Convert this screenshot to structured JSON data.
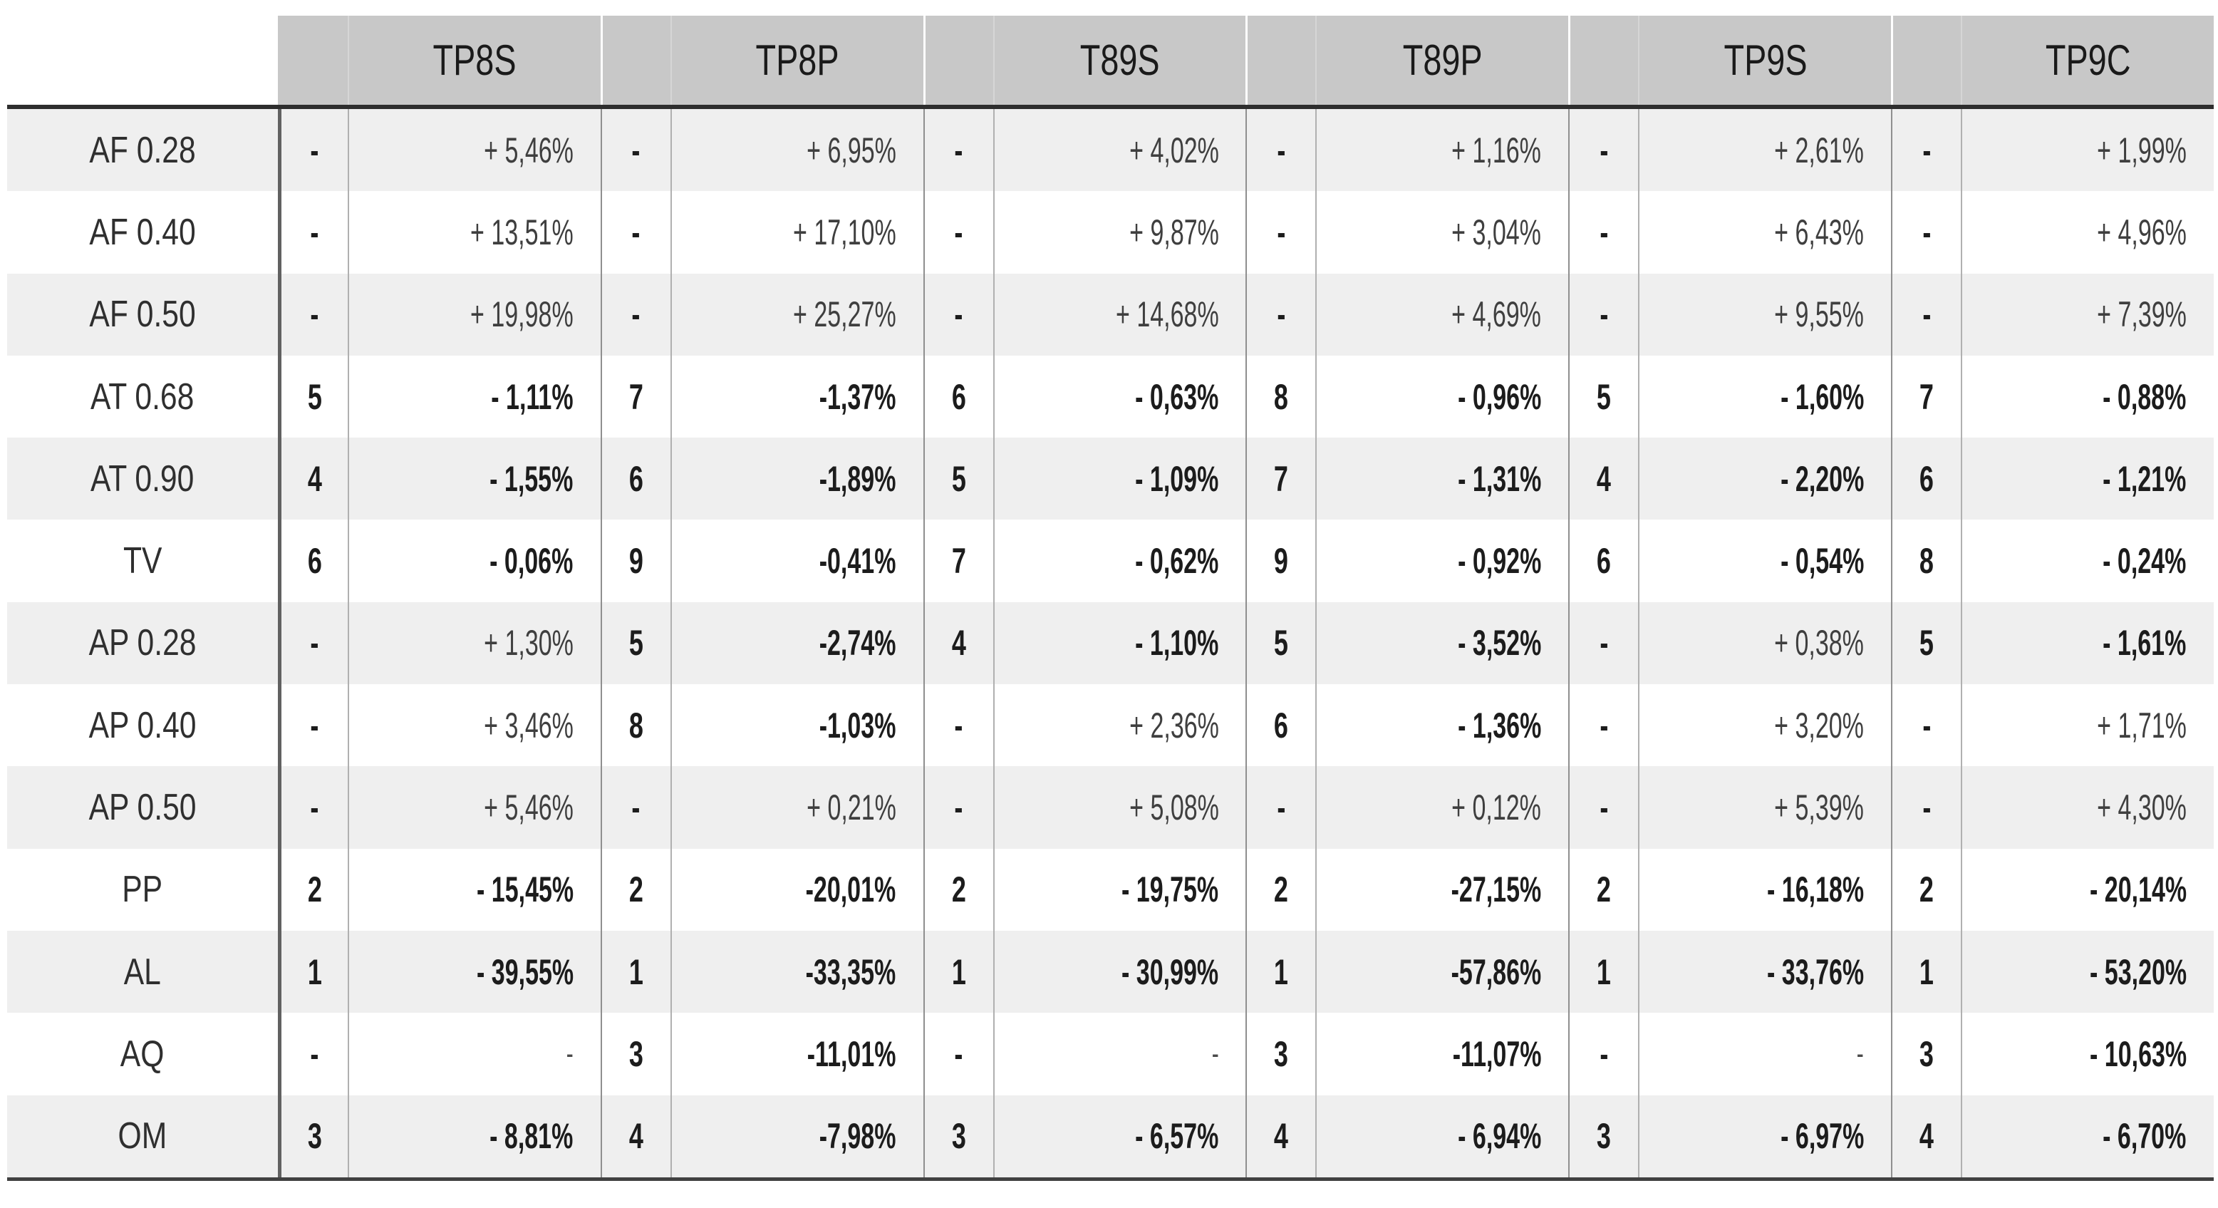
{
  "table": {
    "columns": [
      "TP8S",
      "TP8P",
      "T89S",
      "T89P",
      "TP9S",
      "TP9C"
    ],
    "sub_columns": [
      "rank",
      "delta_percent"
    ],
    "rows": [
      {
        "label": "AF 0.28",
        "cells": [
          {
            "rank": "-",
            "value": "+ 5,46%"
          },
          {
            "rank": "-",
            "value": "+ 6,95%"
          },
          {
            "rank": "-",
            "value": "+ 4,02%"
          },
          {
            "rank": "-",
            "value": "+ 1,16%"
          },
          {
            "rank": "-",
            "value": "+ 2,61%"
          },
          {
            "rank": "-",
            "value": "+ 1,99%"
          }
        ]
      },
      {
        "label": "AF 0.40",
        "cells": [
          {
            "rank": "-",
            "value": "+ 13,51%"
          },
          {
            "rank": "-",
            "value": "+ 17,10%"
          },
          {
            "rank": "-",
            "value": "+ 9,87%"
          },
          {
            "rank": "-",
            "value": "+ 3,04%"
          },
          {
            "rank": "-",
            "value": "+ 6,43%"
          },
          {
            "rank": "-",
            "value": "+ 4,96%"
          }
        ]
      },
      {
        "label": "AF 0.50",
        "cells": [
          {
            "rank": "-",
            "value": "+ 19,98%"
          },
          {
            "rank": "-",
            "value": "+ 25,27%"
          },
          {
            "rank": "-",
            "value": "+ 14,68%"
          },
          {
            "rank": "-",
            "value": "+ 4,69%"
          },
          {
            "rank": "-",
            "value": "+ 9,55%"
          },
          {
            "rank": "-",
            "value": "+ 7,39%"
          }
        ]
      },
      {
        "label": "AT 0.68",
        "cells": [
          {
            "rank": "5",
            "value": "- 1,11%"
          },
          {
            "rank": "7",
            "value": "-1,37%"
          },
          {
            "rank": "6",
            "value": "- 0,63%"
          },
          {
            "rank": "8",
            "value": "- 0,96%"
          },
          {
            "rank": "5",
            "value": "- 1,60%"
          },
          {
            "rank": "7",
            "value": "- 0,88%"
          }
        ]
      },
      {
        "label": "AT 0.90",
        "cells": [
          {
            "rank": "4",
            "value": "- 1,55%"
          },
          {
            "rank": "6",
            "value": "-1,89%"
          },
          {
            "rank": "5",
            "value": "- 1,09%"
          },
          {
            "rank": "7",
            "value": "- 1,31%"
          },
          {
            "rank": "4",
            "value": "- 2,20%"
          },
          {
            "rank": "6",
            "value": "- 1,21%"
          }
        ]
      },
      {
        "label": "TV",
        "cells": [
          {
            "rank": "6",
            "value": "- 0,06%"
          },
          {
            "rank": "9",
            "value": "-0,41%"
          },
          {
            "rank": "7",
            "value": "- 0,62%"
          },
          {
            "rank": "9",
            "value": "- 0,92%"
          },
          {
            "rank": "6",
            "value": "- 0,54%"
          },
          {
            "rank": "8",
            "value": "- 0,24%"
          }
        ]
      },
      {
        "label": "AP 0.28",
        "cells": [
          {
            "rank": "-",
            "value": "+ 1,30%"
          },
          {
            "rank": "5",
            "value": "-2,74%"
          },
          {
            "rank": "4",
            "value": "- 1,10%"
          },
          {
            "rank": "5",
            "value": "- 3,52%"
          },
          {
            "rank": "-",
            "value": "+ 0,38%"
          },
          {
            "rank": "5",
            "value": "- 1,61%"
          }
        ]
      },
      {
        "label": "AP 0.40",
        "cells": [
          {
            "rank": "-",
            "value": "+ 3,46%"
          },
          {
            "rank": "8",
            "value": "-1,03%"
          },
          {
            "rank": "-",
            "value": "+ 2,36%"
          },
          {
            "rank": "6",
            "value": "- 1,36%"
          },
          {
            "rank": "-",
            "value": "+ 3,20%"
          },
          {
            "rank": "-",
            "value": "+ 1,71%"
          }
        ]
      },
      {
        "label": "AP 0.50",
        "cells": [
          {
            "rank": "-",
            "value": "+ 5,46%"
          },
          {
            "rank": "-",
            "value": "+ 0,21%"
          },
          {
            "rank": "-",
            "value": "+ 5,08%"
          },
          {
            "rank": "-",
            "value": "+ 0,12%"
          },
          {
            "rank": "-",
            "value": "+ 5,39%"
          },
          {
            "rank": "-",
            "value": "+ 4,30%"
          }
        ]
      },
      {
        "label": "PP",
        "cells": [
          {
            "rank": "2",
            "value": "- 15,45%"
          },
          {
            "rank": "2",
            "value": "-20,01%"
          },
          {
            "rank": "2",
            "value": "- 19,75%"
          },
          {
            "rank": "2",
            "value": "-27,15%"
          },
          {
            "rank": "2",
            "value": "- 16,18%"
          },
          {
            "rank": "2",
            "value": "- 20,14%"
          }
        ]
      },
      {
        "label": "AL",
        "cells": [
          {
            "rank": "1",
            "value": "- 39,55%"
          },
          {
            "rank": "1",
            "value": "-33,35%"
          },
          {
            "rank": "1",
            "value": "- 30,99%"
          },
          {
            "rank": "1",
            "value": "-57,86%"
          },
          {
            "rank": "1",
            "value": "- 33,76%"
          },
          {
            "rank": "1",
            "value": "- 53,20%"
          }
        ]
      },
      {
        "label": "AQ",
        "cells": [
          {
            "rank": "-",
            "value": "-"
          },
          {
            "rank": "3",
            "value": "-11,01%"
          },
          {
            "rank": "-",
            "value": "-"
          },
          {
            "rank": "3",
            "value": "-11,07%"
          },
          {
            "rank": "-",
            "value": "-"
          },
          {
            "rank": "3",
            "value": "- 10,63%"
          }
        ]
      },
      {
        "label": "OM",
        "cells": [
          {
            "rank": "3",
            "value": "- 8,81%"
          },
          {
            "rank": "4",
            "value": "-7,98%"
          },
          {
            "rank": "3",
            "value": "- 6,57%"
          },
          {
            "rank": "4",
            "value": "- 6,94%"
          },
          {
            "rank": "3",
            "value": "- 6,97%"
          },
          {
            "rank": "4",
            "value": "- 6,70%"
          }
        ]
      }
    ]
  },
  "colors": {
    "header_bg": "#c8c8c8",
    "row_alt_bg": "#efefef",
    "row_bg": "#ffffff",
    "rule_under_header": "#2e2e2e",
    "rule_bottom": "#414141",
    "divider_after_labels": "#616161",
    "divider_group": "#8f8f8f",
    "divider_subcolumn": "#b0b0b0",
    "text_bold": "#1c1c1c",
    "text_regular": "#3f3f3f"
  }
}
